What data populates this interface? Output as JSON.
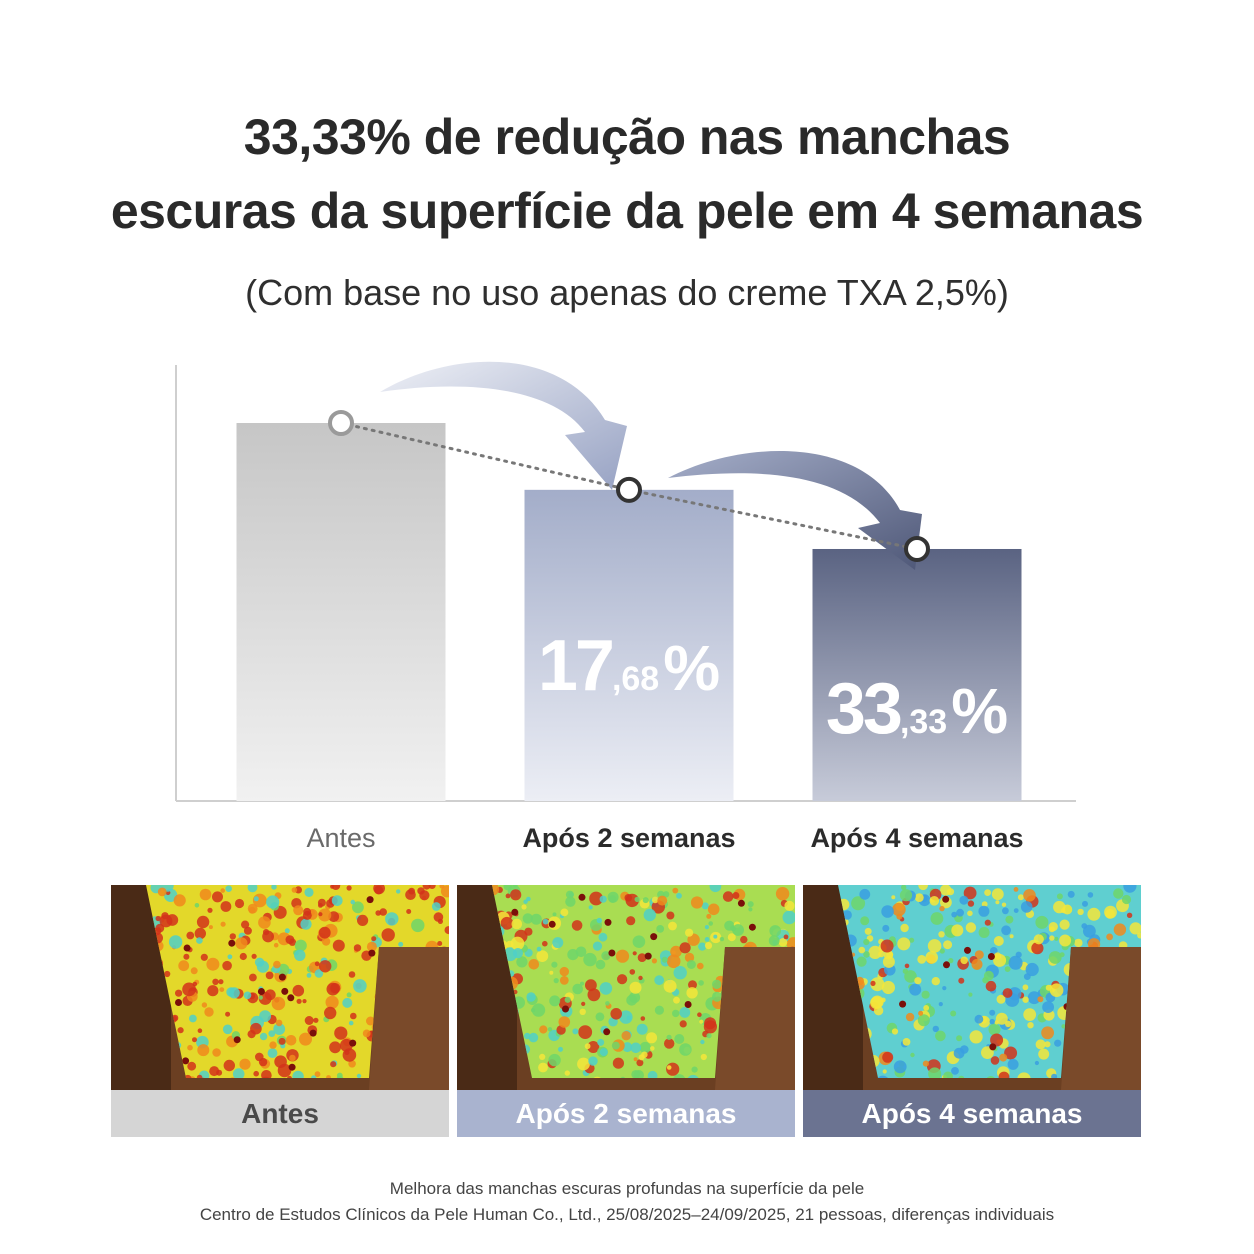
{
  "header": {
    "title_line1": "33,33% de redução nas manchas",
    "title_line2": "escuras da superfície da pele em 4 semanas",
    "subtitle": "(Com base no uso apenas do creme TXA 2,5%)"
  },
  "chart_data": {
    "type": "bar",
    "title": "33,33% de redução nas manchas escuras da superfície da pele em 4 semanas",
    "subtitle": "(Com base no uso apenas do creme TXA 2,5%)",
    "categories": [
      "Antes",
      "Após 2 semanas",
      "Após 4 semanas"
    ],
    "values": [
      100,
      82.32,
      66.67
    ],
    "reduction_labels": [
      null,
      {
        "int": "17",
        "dec": ",68",
        "pct": "%"
      },
      {
        "int": "33",
        "dec": ",33",
        "pct": "%"
      }
    ],
    "ylim": [
      0,
      100
    ],
    "grid": false,
    "colors": [
      "#c9c9c9",
      "#a7b1cc",
      "#5c6584"
    ]
  },
  "photos": [
    {
      "caption": "Antes",
      "level": 1.0
    },
    {
      "caption": "Após 2 semanas",
      "level": 0.55
    },
    {
      "caption": "Após 4 semanas",
      "level": 0.2
    }
  ],
  "footnote": {
    "line1": "Melhora das manchas escuras profundas na superfície da pele",
    "line2": "Centro de Estudos Clínicos da Pele Human Co., Ltd., 25/08/2025–24/09/2025, 21 pessoas, diferenças individuais"
  }
}
